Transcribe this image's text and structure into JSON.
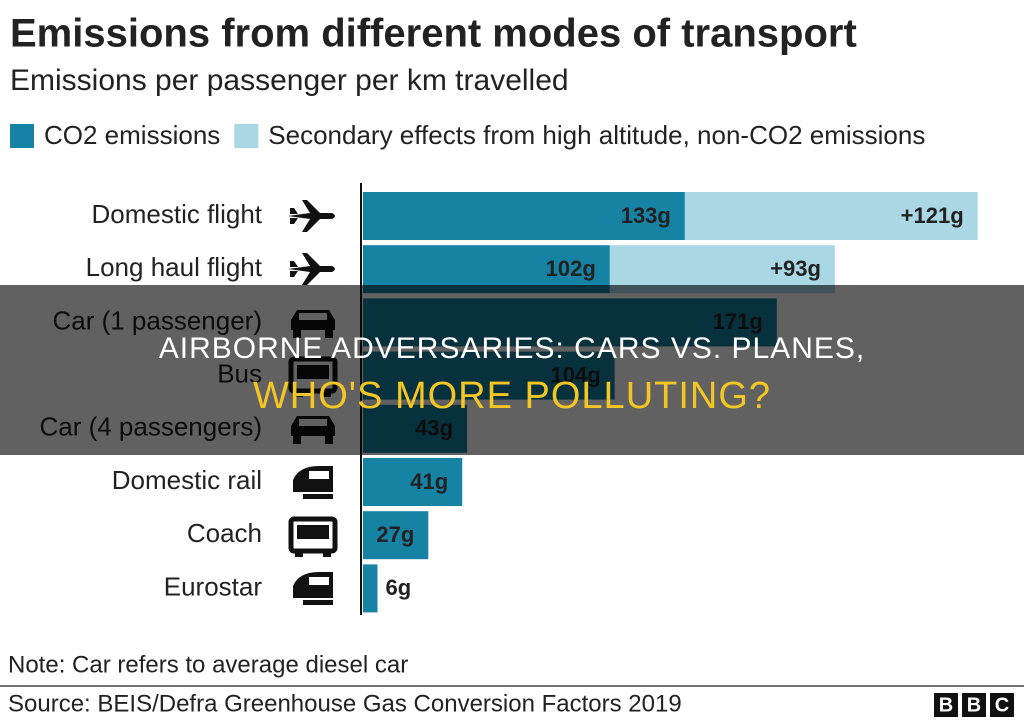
{
  "chart_data": {
    "type": "bar",
    "orientation": "horizontal",
    "stacked": true,
    "title": "Emissions from different modes of transport",
    "subtitle": "Emissions per passenger per km travelled",
    "categories": [
      "Domestic flight",
      "Long haul flight",
      "Car (1 passenger)",
      "Bus",
      "Car (4 passengers)",
      "Domestic rail",
      "Coach",
      "Eurostar"
    ],
    "series": [
      {
        "name": "CO2 emissions",
        "color": "#1682a4",
        "values": [
          133,
          102,
          171,
          104,
          43,
          41,
          27,
          6
        ],
        "value_labels": [
          "133g",
          "102g",
          "171g",
          "104g",
          "43g",
          "41g",
          "27g",
          "6g"
        ]
      },
      {
        "name": "Secondary effects from high altitude, non-CO2 emissions",
        "color": "#a9d7e4",
        "values": [
          121,
          93,
          null,
          null,
          null,
          null,
          null,
          null
        ],
        "value_labels": [
          "+121g",
          "+93g",
          null,
          null,
          null,
          null,
          null,
          null
        ]
      }
    ],
    "note": "Note: Car refers to average diesel car",
    "source": "Source: BEIS/Defra Greenhouse Gas Conversion Factors 2019",
    "logo": [
      "B",
      "B",
      "C"
    ]
  },
  "overlay": {
    "line1": "AIRBORNE ADVERSARIES: CARS VS. PLANES,",
    "line2": "WHO'S MORE POLLUTING?"
  }
}
